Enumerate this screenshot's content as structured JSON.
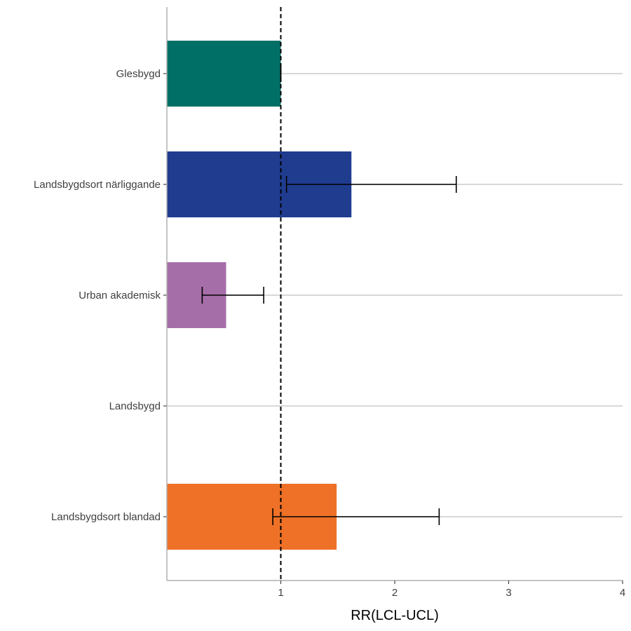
{
  "chart_data": {
    "type": "bar",
    "orientation": "horizontal",
    "xlabel": "RR(LCL-UCL)",
    "ylabel": "",
    "xlim": [
      0,
      4
    ],
    "x_ticks": [
      "1",
      "2",
      "3",
      "4"
    ],
    "reference_line": 1,
    "grid": "horizontal major lines only",
    "categories": [
      "Glesbygd",
      "Landsbygdsort närliggande",
      "Urban akademisk",
      "Landsbygd",
      "Landsbygdsort blandad"
    ],
    "values": [
      1.0,
      1.62,
      0.52,
      null,
      1.49
    ],
    "lcl": [
      1.0,
      1.05,
      0.31,
      null,
      0.93
    ],
    "ucl": [
      1.0,
      2.54,
      0.85,
      null,
      2.39
    ],
    "colors": [
      "#006F66",
      "#1F3C8F",
      "#A66EA9",
      null,
      "#EE7127"
    ]
  }
}
